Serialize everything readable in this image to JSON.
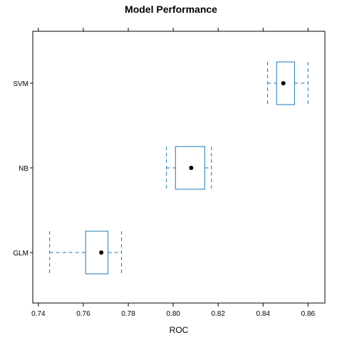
{
  "chart_data": {
    "type": "box",
    "title": "Model Performance",
    "xlabel": "ROC",
    "ylabel": "",
    "xlim": [
      0.7375,
      0.8675
    ],
    "x_ticks": [
      0.74,
      0.76,
      0.78,
      0.8,
      0.82,
      0.84,
      0.86
    ],
    "x_tick_labels": [
      "0.74",
      "0.76",
      "0.78",
      "0.80",
      "0.82",
      "0.84",
      "0.86"
    ],
    "categories": [
      "SVM",
      "NB",
      "GLM"
    ],
    "boxes": [
      {
        "label": "SVM",
        "whisker_low": 0.842,
        "q1": 0.846,
        "median": 0.849,
        "q3": 0.854,
        "whisker_high": 0.86
      },
      {
        "label": "NB",
        "whisker_low": 0.797,
        "q1": 0.801,
        "median": 0.808,
        "q3": 0.814,
        "whisker_high": 0.817
      },
      {
        "label": "GLM",
        "whisker_low": 0.745,
        "q1": 0.761,
        "median": 0.768,
        "q3": 0.771,
        "whisker_high": 0.777
      }
    ],
    "grid": false,
    "legend": "none",
    "box_color": "#1f78b4",
    "median_color": "#000000"
  }
}
